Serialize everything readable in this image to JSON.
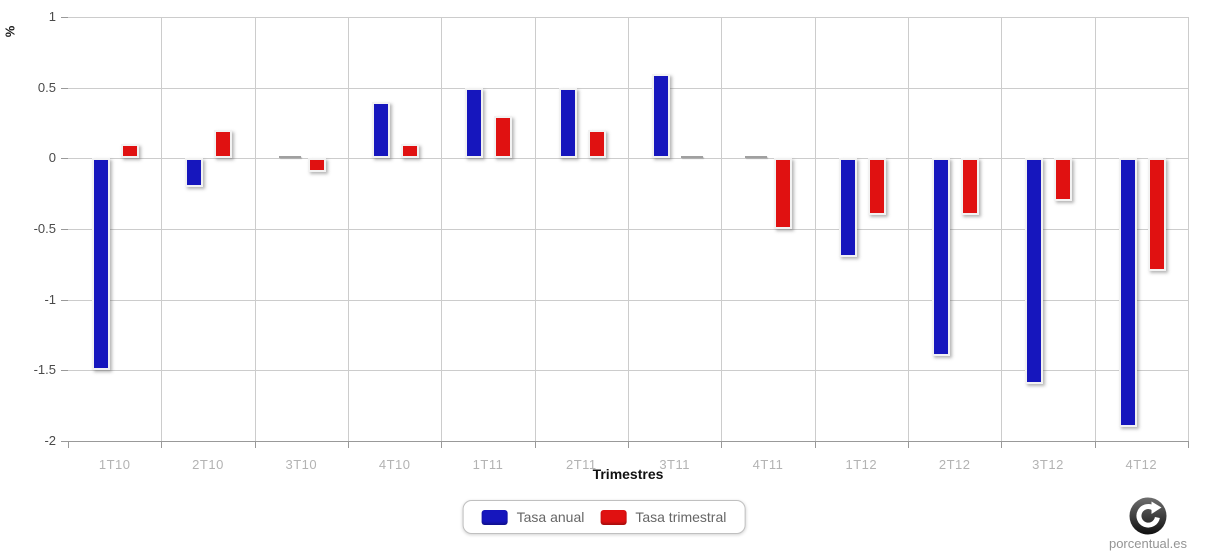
{
  "chart_data": {
    "type": "bar",
    "title": "",
    "xlabel": "Trimestres",
    "ylabel": "%",
    "categories": [
      "1T10",
      "2T10",
      "3T10",
      "4T10",
      "1T11",
      "2T11",
      "3T11",
      "4T11",
      "1T12",
      "2T12",
      "3T12",
      "4T12"
    ],
    "series": [
      {
        "name": "Tasa anual",
        "color": "#1616bd",
        "values": [
          -1.5,
          -0.2,
          0,
          0.4,
          0.5,
          0.5,
          0.6,
          0,
          -0.7,
          -1.4,
          -1.6,
          -1.9
        ]
      },
      {
        "name": "Tasa trimestral",
        "color": "#e01111",
        "values": [
          0.1,
          0.2,
          -0.1,
          0.1,
          0.3,
          0.2,
          0,
          -0.5,
          -0.4,
          -0.4,
          -0.3,
          -0.8
        ]
      }
    ],
    "ylim": [
      -2,
      1
    ],
    "yticks": [
      1,
      0.5,
      0,
      -0.5,
      -1,
      -1.5,
      -2
    ],
    "grid": "on",
    "legend_position": "bottom-center"
  },
  "watermark": {
    "text": "porcentual.es",
    "icon": "refresh-circle-icon"
  }
}
